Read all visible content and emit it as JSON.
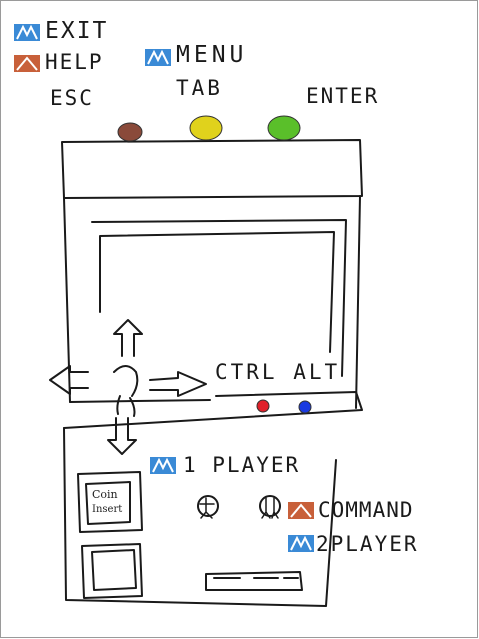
{
  "menu": {
    "exit_label": "EXIT",
    "help_label": "HELP",
    "menu_label": "MENU",
    "esc_key": "ESC",
    "tab_key": "TAB",
    "enter_key": "ENTER"
  },
  "panel": {
    "ctrl_alt_label": "CTRL ALT",
    "player1_label": "1 PLAYER",
    "command_label": "COMMAND",
    "player2_label": "2PLAYER"
  },
  "coin_slot": {
    "line1": "Coin",
    "line2": "Insert"
  },
  "icons": {
    "blue_logo": "blue-stripe-logo-icon",
    "orange_logo": "orange-stripe-logo-icon"
  },
  "colors": {
    "blue_logo": "#3a8ad6",
    "orange_logo": "#c8603a",
    "button_esc": "#8a4a3a",
    "button_tab": "#e0d21c",
    "button_enter": "#5abf2a",
    "button_red": "#e0202a",
    "button_blue": "#1a3ae0"
  }
}
